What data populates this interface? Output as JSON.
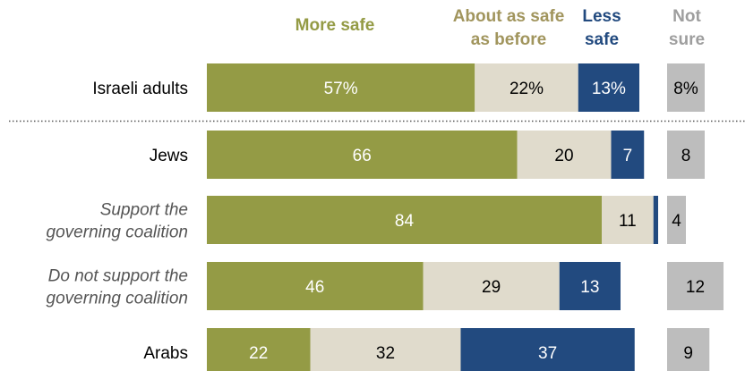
{
  "chart_data": {
    "type": "bar",
    "orientation": "horizontal",
    "stacked": true,
    "value_format": "percent on first row only",
    "categories": [
      "Israeli adults",
      "Jews",
      "Support the governing coalition",
      "Do not support the governing coalition",
      "Arabs"
    ],
    "category_lines": [
      [
        "Israeli adults"
      ],
      [
        "Jews"
      ],
      [
        "Support the",
        "governing coalition"
      ],
      [
        "Do not support the",
        "governing coalition"
      ],
      [
        "Arabs"
      ]
    ],
    "category_italic": [
      false,
      false,
      true,
      true,
      false
    ],
    "series": [
      {
        "name": "More safe",
        "legend_lines": [
          "More safe"
        ],
        "color": "#949b45",
        "label_color": "#ffffff",
        "values": [
          57,
          66,
          84,
          46,
          22
        ]
      },
      {
        "name": "About as safe as before",
        "legend_lines": [
          "About as safe",
          "as before"
        ],
        "color": "#e0dbcc",
        "label_color": "#000000",
        "values": [
          22,
          20,
          11,
          29,
          32
        ]
      },
      {
        "name": "Less safe",
        "legend_lines": [
          "Less",
          "safe"
        ],
        "color": "#224a7f",
        "label_color": "#ffffff",
        "values": [
          13,
          7,
          1,
          13,
          37
        ]
      }
    ],
    "separate_series": {
      "name": "Not sure",
      "legend_lines": [
        "Not",
        "sure"
      ],
      "color": "#bdbdbd",
      "label_color": "#000000",
      "values": [
        8,
        8,
        4,
        12,
        9
      ]
    },
    "hidden_labels": [
      [
        2,
        2
      ]
    ],
    "legend_colors": {
      "More safe": "#949b45",
      "About as safe as before": "#a1955d",
      "Less safe": "#224a7f",
      "Not sure": "#9e9e9e"
    },
    "separator_after_row": 0,
    "grid": false,
    "legend_placement": "top"
  }
}
